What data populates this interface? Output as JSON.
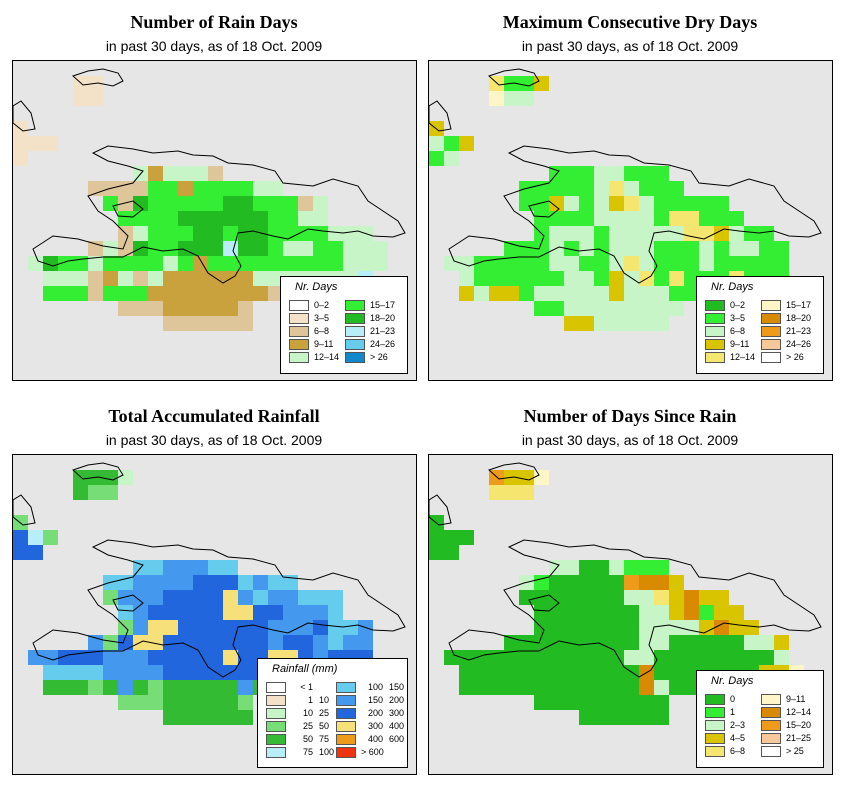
{
  "panels": [
    {
      "title": "Number of Rain Days",
      "subtitle": "in past 30 days, as of  18 Oct. 2009",
      "legend": {
        "title": "Nr. Days",
        "columns": 2,
        "items": [
          {
            "label": "0–2",
            "color": "#ffffff"
          },
          {
            "label": "3–5",
            "color": "#f3e2c8"
          },
          {
            "label": "6–8",
            "color": "#dec69a"
          },
          {
            "label": "9–11",
            "color": "#c9a23e"
          },
          {
            "label": "12–14",
            "color": "#c8f5c8"
          },
          {
            "label": "15–17",
            "color": "#33ee33"
          },
          {
            "label": "18–20",
            "color": "#22bb22"
          },
          {
            "label": "21–23",
            "color": "#b8eef8"
          },
          {
            "label": "24–26",
            "color": "#66ccee"
          },
          {
            "label": "> 26",
            "color": "#1188cc"
          }
        ]
      },
      "grid": {
        "palette": {
          "a": "#f3e2c8",
          "b": "#dec69a",
          "c": "#c9a23e",
          "d": "#c8f5c8",
          "e": "#33ee33",
          "f": "#22bb22",
          "g": "#b8eef8"
        },
        "rows": [
          "...........................",
          "....aa.....................",
          "....aa.....................",
          "...........................",
          "a..........................",
          "aaa........................",
          "a..........................",
          "........dcdddb.............",
          ".....bbbbeeceeeedd.........",
          "......ebfeeeeeffeeebd......",
          ".......eeeeffffffeedd......",
          ".......bdeeeffeffeeeeddd...",
          ".....bdbfeefffgffeddeeddd..",
          ".dfeedeeeedeceeeeeeeeeddd..",
          "..dddbcdbdccccccdddddddg...",
          "..eeebeeeccccccccbddbbdb...",
          ".......bbbcccccb...........",
          "..........bbbbbb...........",
          "...........................",
          "..........................."
        ]
      }
    },
    {
      "title": "Maximum Consecutive Dry Days",
      "subtitle": "in past 30 days, as of  18 Oct. 2009",
      "legend": {
        "title": "Nr. Days",
        "columns": 2,
        "items": [
          {
            "label": "0–2",
            "color": "#22bb22"
          },
          {
            "label": "3–5",
            "color": "#33ee33"
          },
          {
            "label": "6–8",
            "color": "#c8f5c8"
          },
          {
            "label": "9–11",
            "color": "#d9c400"
          },
          {
            "label": "12–14",
            "color": "#f5e670"
          },
          {
            "label": "15–17",
            "color": "#fff6c8"
          },
          {
            "label": "18–20",
            "color": "#d88a00"
          },
          {
            "label": "21–23",
            "color": "#ee9a1a"
          },
          {
            "label": "24–26",
            "color": "#f6c89a"
          },
          {
            "label": "> 26",
            "color": "#ffffff"
          }
        ]
      },
      "grid": {
        "palette": {
          "a": "#22bb22",
          "b": "#33ee33",
          "c": "#c8f5c8",
          "d": "#d9c400",
          "e": "#f5e670",
          "f": "#fff6c8"
        },
        "rows": [
          "...........................",
          "....ebbd...................",
          "....fcc....................",
          "...........................",
          "d..........................",
          "cbd........................",
          "bc.........................",
          "........bbbccbbb...........",
          "......bbbbbcecbbb..........",
          "......bbdcbcdecbbbbb.......",
          ".......bbbbccccbeebbb......",
          ".......bcccbccccceedcbb....",
          ".....bbbcbcbcccbbbcbccbb...",
          ".ccbbbbbccbbcecbbbcbbbbb...",
          "..cbbbbbbccbdcebebbbebbb...",
          "..dcddbcccccdcccbbccccbb...",
          ".......bbcccccccc..........",
          ".........ddccccc...........",
          "...........................",
          "..........................."
        ]
      }
    },
    {
      "title": "Total Accumulated Rainfall",
      "subtitle": "in past 30 days, as of  18 Oct. 2009",
      "legend": {
        "title": "Rainfall (mm)",
        "columns": 2,
        "items": [
          {
            "a": "< 1",
            "b": "",
            "color": "#ffffff"
          },
          {
            "a": "1",
            "b": "10",
            "color": "#f3e2c8"
          },
          {
            "a": "10",
            "b": "25",
            "color": "#c8f5c8"
          },
          {
            "a": "25",
            "b": "50",
            "color": "#77dd77"
          },
          {
            "a": "50",
            "b": "75",
            "color": "#33bb33"
          },
          {
            "a": "75",
            "b": "100",
            "color": "#b8eef8"
          },
          {
            "a": "100",
            "b": "150",
            "color": "#66ccee"
          },
          {
            "a": "150",
            "b": "200",
            "color": "#4499ee"
          },
          {
            "a": "200",
            "b": "300",
            "color": "#2266dd"
          },
          {
            "a": "300",
            "b": "400",
            "color": "#f6e07a"
          },
          {
            "a": "400",
            "b": "600",
            "color": "#ee9a1a"
          },
          {
            "a": "> 600",
            "b": "",
            "color": "#ee3311"
          }
        ]
      },
      "grid": {
        "palette": {
          "a": "#c8f5c8",
          "b": "#77dd77",
          "c": "#33bb33",
          "d": "#b8eef8",
          "e": "#66ccee",
          "f": "#4499ee",
          "g": "#2266dd",
          "h": "#f6e07a"
        },
        "rows": [
          "...........................",
          "....ccca...................",
          "....cbb....................",
          "...........................",
          "b..........................",
          "gdb........................",
          "gg.........................",
          "........eefffee............",
          "......eeffffgggefee........",
          "......bfffgggghfeffeee.....",
          ".......efggggghhggfffe.....",
          ".......bfhhggggggfffgeef...",
          ".....fbghhgggggggfggfeff...",
          ".ffgggfffggggghgghhgfggg...",
          "..eeeeffffgggggggggfgfed...",
          "..cccbcfcbcccccfcbcbcbee...",
          ".......bbbcccccb...........",
          "..........cccccc...........",
          "...........................",
          "..........................."
        ]
      }
    },
    {
      "title": "Number of Days Since Rain",
      "subtitle": "in past 30 days, as of  18 Oct. 2009",
      "legend": {
        "title": "Nr. Days",
        "columns": 2,
        "items": [
          {
            "label": "0",
            "color": "#22bb22"
          },
          {
            "label": "1",
            "color": "#33ee33"
          },
          {
            "label": "2–3",
            "color": "#c8f5c8"
          },
          {
            "label": "4–5",
            "color": "#d9c400"
          },
          {
            "label": "6–8",
            "color": "#f5e670"
          },
          {
            "label": "9–11",
            "color": "#fff6c8"
          },
          {
            "label": "12–14",
            "color": "#d88a00"
          },
          {
            "label": "15–20",
            "color": "#ee9a1a"
          },
          {
            "label": "21–25",
            "color": "#f6c89a"
          },
          {
            "label": "> 25",
            "color": "#ffffff"
          }
        ]
      },
      "grid": {
        "palette": {
          "a": "#22bb22",
          "b": "#33ee33",
          "c": "#c8f5c8",
          "d": "#d9c400",
          "e": "#f5e670",
          "f": "#fff6c8",
          "g": "#d88a00",
          "h": "#ee9a1a"
        },
        "rows": [
          "...........................",
          "....hddf...................",
          "....eee....................",
          "...........................",
          "a..........................",
          "aaa........................",
          "aa.........................",
          "........ccaacbbb...........",
          "......cbaaaaahggd..........",
          "......aaaaaaaccedgdd.......",
          ".......aaaaaaaccdgbdd......",
          ".......aaaaaaaccccdgdd.....",
          ".....aaaaaaaaaccaaaaaccd...",
          ".aaaaaaaaaaaaccaaaaaaaac...",
          "..aaaaaaaaaaaagaaaaaaaddf..",
          "..aaaaaaaaaaaagcaaaaaadd...",
          ".......aaaaaaaaa...........",
          "..........aaaaaa...........",
          "...........................",
          "..........................."
        ]
      }
    }
  ]
}
